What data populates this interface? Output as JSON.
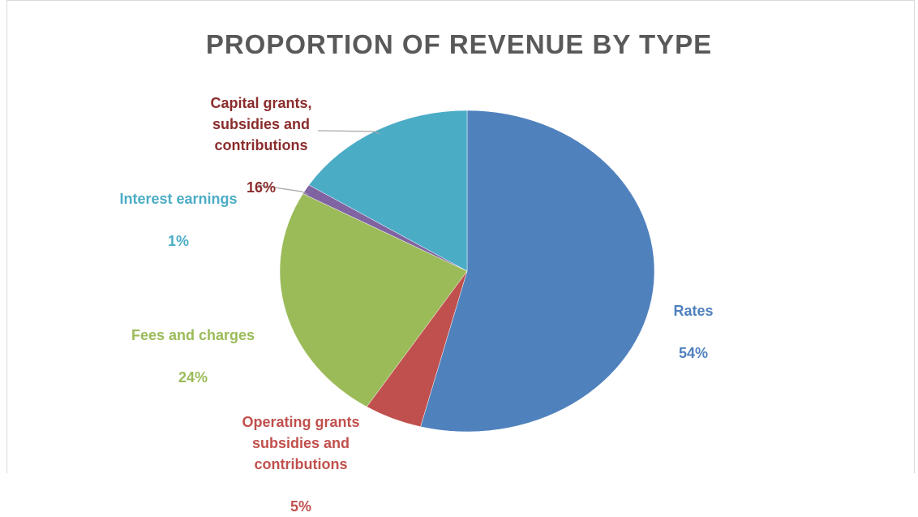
{
  "chart_data": {
    "type": "pie",
    "title": "PROPORTION OF REVENUE BY TYPE",
    "legend": "none",
    "slices": [
      {
        "label": "Rates",
        "value": 54,
        "value_label": "54%",
        "color": "#4f81bd"
      },
      {
        "label": "Operating grants subsidies and contributions",
        "value": 5,
        "value_label": "5%",
        "color": "#c0504d"
      },
      {
        "label": "Fees and charges",
        "value": 24,
        "value_label": "24%",
        "color": "#9bbb59"
      },
      {
        "label": "Interest earnings",
        "value": 1,
        "value_label": "1%",
        "color": "#8064a2"
      },
      {
        "label": "Capital grants, subsidies and contributions",
        "value": 16,
        "value_label": "16%",
        "color": "#4bacc6"
      }
    ]
  },
  "label_colors": {
    "rates": "#4f81bd",
    "operating": "#c0504d",
    "fees": "#9bbb59",
    "interest": "#4bacc6",
    "capital": "#8b2c2c"
  }
}
